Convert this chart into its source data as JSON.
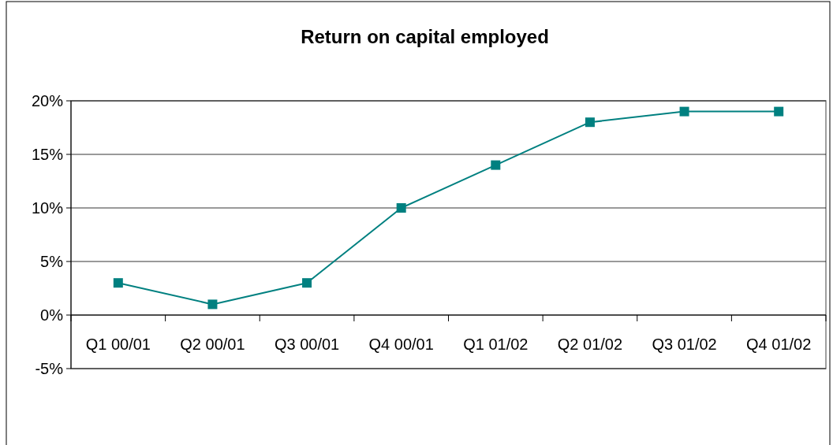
{
  "chart_data": {
    "type": "line",
    "title": "Return on capital employed",
    "categories": [
      "Q1 00/01",
      "Q2 00/01",
      "Q3 00/01",
      "Q4 00/01",
      "Q1 01/02",
      "Q2 01/02",
      "Q3 01/02",
      "Q4 01/02"
    ],
    "series": [
      {
        "color": "#008080",
        "values": [
          3,
          1,
          3,
          10,
          14,
          18,
          19,
          19
        ]
      }
    ],
    "ylim": [
      -5,
      20
    ],
    "yticks": [
      {
        "value": -5,
        "label": "-5%"
      },
      {
        "value": 0,
        "label": "0%"
      },
      {
        "value": 5,
        "label": "5%"
      },
      {
        "value": 10,
        "label": "10%"
      },
      {
        "value": 15,
        "label": "15%"
      },
      {
        "value": 20,
        "label": "20%"
      }
    ],
    "grid": "y",
    "marker": "square",
    "line_style": "solid"
  }
}
